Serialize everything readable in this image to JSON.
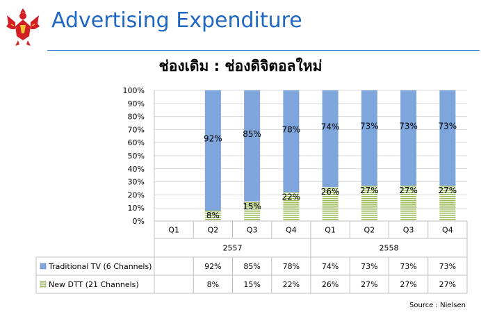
{
  "header": {
    "title": "Advertising Expenditure",
    "emblem_icon": "garuda-emblem-icon",
    "accent_color": "#1f67c2"
  },
  "chart_data": {
    "type": "bar",
    "stacked": true,
    "percent": true,
    "title": "ช่องเดิม : ช่องดิจิตอลใหม่",
    "xlabel": "",
    "ylabel": "",
    "ylim": [
      0,
      100
    ],
    "yticks": [
      "0%",
      "10%",
      "20%",
      "30%",
      "40%",
      "50%",
      "60%",
      "70%",
      "80%",
      "90%",
      "100%"
    ],
    "categories": [
      "Q1",
      "Q2",
      "Q3",
      "Q4",
      "Q1",
      "Q2",
      "Q3",
      "Q4"
    ],
    "groups": [
      {
        "label": "2557",
        "count": 4
      },
      {
        "label": "2558",
        "count": 4
      }
    ],
    "series": [
      {
        "name": "New DTT (21 Channels)",
        "color": "#9bbb59",
        "pattern": "horizontal-stripes",
        "values": [
          null,
          8,
          15,
          22,
          26,
          27,
          27,
          27
        ],
        "labels": [
          "",
          "8%",
          "15%",
          "22%",
          "26%",
          "27%",
          "27%",
          "27%"
        ]
      },
      {
        "name": "Traditional TV (6 Channels)",
        "color": "#7ea6dc",
        "pattern": "solid",
        "values": [
          null,
          92,
          85,
          78,
          74,
          73,
          73,
          73
        ],
        "labels": [
          "",
          "92%",
          "85%",
          "78%",
          "74%",
          "73%",
          "73%",
          "73%"
        ]
      }
    ],
    "legend": "data-table"
  },
  "footer": {
    "source": "Source : Nielsen"
  }
}
